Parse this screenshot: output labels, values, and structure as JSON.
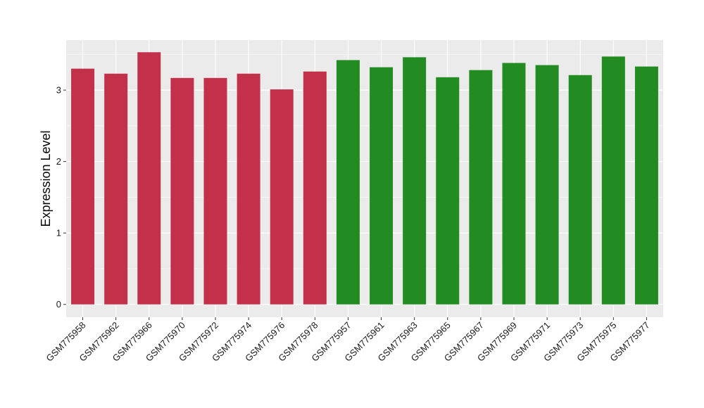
{
  "chart_data": {
    "type": "bar",
    "title": "",
    "xlabel": "",
    "ylabel": "Expression Level",
    "ylim": [
      -0.18,
      3.7
    ],
    "yticks": [
      0,
      1,
      2,
      3
    ],
    "grid": true,
    "legend": "none",
    "categories": [
      "GSM775958",
      "GSM775962",
      "GSM775966",
      "GSM775970",
      "GSM775972",
      "GSM775974",
      "GSM775976",
      "GSM775978",
      "GSM775957",
      "GSM775961",
      "GSM775963",
      "GSM775965",
      "GSM775967",
      "GSM775969",
      "GSM775971",
      "GSM775973",
      "GSM775975",
      "GSM775977"
    ],
    "values": [
      3.3,
      3.23,
      3.53,
      3.17,
      3.17,
      3.23,
      3.01,
      3.26,
      3.42,
      3.32,
      3.46,
      3.18,
      3.28,
      3.38,
      3.35,
      3.21,
      3.47,
      3.33
    ],
    "groups": [
      0,
      0,
      0,
      0,
      0,
      0,
      0,
      0,
      1,
      1,
      1,
      1,
      1,
      1,
      1,
      1,
      1,
      1
    ],
    "group_colors": [
      "#C3304A",
      "#228B22"
    ],
    "panel_background": "#EBEBEB",
    "gridline_color": "#FFFFFF"
  }
}
